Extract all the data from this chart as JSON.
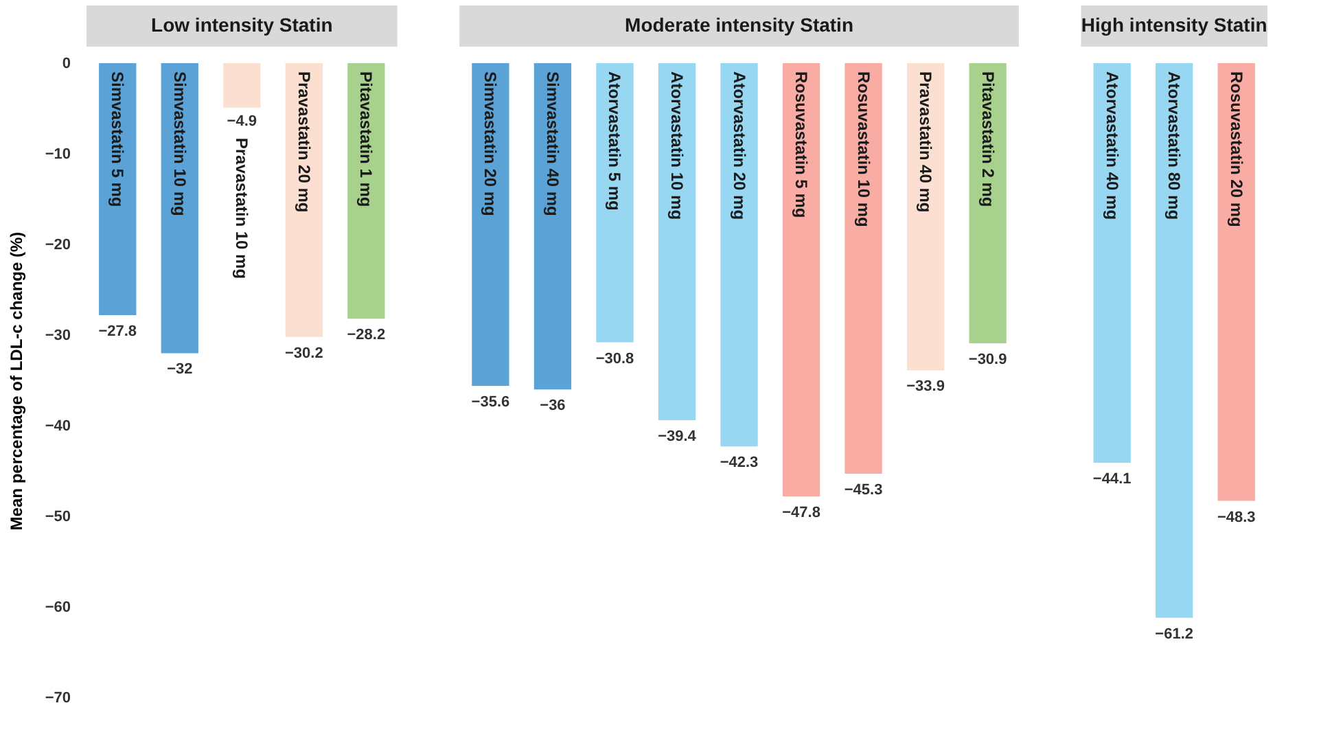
{
  "chart_data": {
    "type": "bar",
    "ylabel": "Mean percentage of LDL-c change (%)",
    "annotations": [
      "Low intensity Statin",
      "Moderate intensity Statin",
      "High intensity Statin"
    ],
    "categories": [
      "Simvastatin 5 mg",
      "Simvastatin 10 mg",
      "Pravastatin 10 mg",
      "Pravastatin 20 mg",
      "Pitavastatin 1 mg",
      null,
      "Simvastatin 20 mg",
      "Simvastatin 40 mg",
      "Atorvastatin 5 mg",
      "Atorvastatin 10 mg",
      "Atorvastatin 20 mg",
      "Rosuvastatin 5 mg",
      "Rosuvastatin 10 mg",
      "Pravastatin 40 mg",
      "Pitavastatin 2 mg",
      null,
      "Atorvastatin 40 mg",
      "Atorvastatin 80 mg",
      "Rosuvastatin 20 mg"
    ],
    "values": [
      -27.8,
      -32,
      -4.9,
      -30.2,
      -28.2,
      null,
      -35.6,
      -36,
      -30.8,
      -39.4,
      -42.3,
      -47.8,
      -45.3,
      -33.9,
      -30.9,
      null,
      -44.1,
      -61.2,
      -48.3
    ],
    "colors": [
      "#5ba3d6",
      "#5ba3d6",
      "#fbe0d2",
      "#fbe0d2",
      "#a9d18e",
      null,
      "#5ba3d6",
      "#5ba3d6",
      "#97d7f2",
      "#97d7f2",
      "#97d7f2",
      "#f8aca3",
      "#f8aca3",
      "#fbe0d2",
      "#a9d18e",
      null,
      "#97d7f2",
      "#97d7f2",
      "#f8aca3"
    ],
    "ylim": [
      -70,
      0
    ],
    "yticks": [
      0,
      -10,
      -20,
      -30,
      -40,
      -50,
      -60,
      -70
    ],
    "data_labels": true,
    "grid": false
  }
}
